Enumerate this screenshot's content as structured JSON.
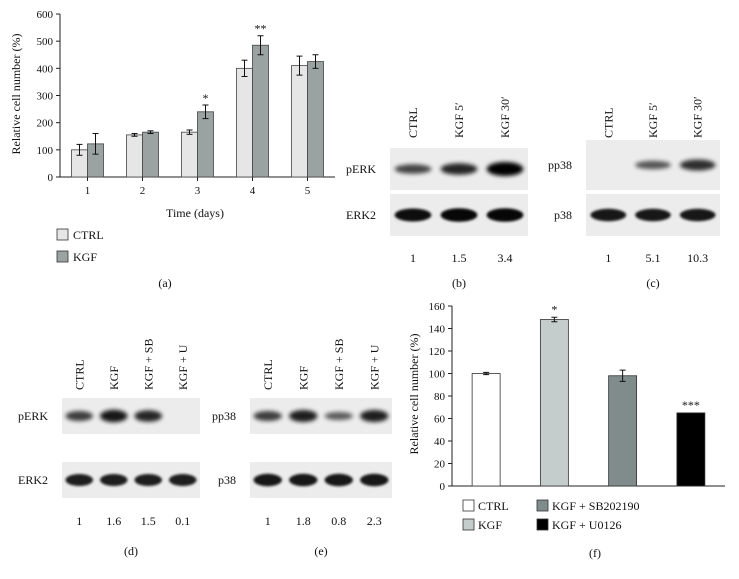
{
  "chart_data": [
    {
      "panel": "(a)",
      "type": "bar",
      "categories": [
        "1",
        "2",
        "3",
        "4",
        "5"
      ],
      "series": [
        {
          "name": "CTRL",
          "values": [
            100,
            155,
            165,
            400,
            410
          ],
          "errors": [
            20,
            5,
            8,
            30,
            35
          ],
          "color": "#e6e6e6"
        },
        {
          "name": "KGF",
          "values": [
            122,
            165,
            240,
            485,
            425
          ],
          "errors": [
            38,
            5,
            25,
            35,
            25
          ],
          "color": "#9aa2a2"
        }
      ],
      "annotations": [
        {
          "category": "3",
          "series": "KGF",
          "text": "*"
        },
        {
          "category": "4",
          "series": "KGF",
          "text": "**"
        }
      ],
      "xlabel": "Time (days)",
      "ylabel": "Relative cell number (%)",
      "ylim": [
        0,
        600
      ],
      "yticks": [
        "0",
        "100",
        "200",
        "300",
        "400",
        "500",
        "600"
      ],
      "legend_position": "bottom-left"
    },
    {
      "panel": "(f)",
      "type": "bar",
      "categories": [
        "CTRL",
        "KGF",
        "KGF + SB202190",
        "KGF + U0126"
      ],
      "values": [
        100,
        148,
        98,
        65
      ],
      "errors": [
        1,
        2,
        5,
        0
      ],
      "colors": [
        "#ffffff",
        "#c5cccc",
        "#808b8b",
        "#000000"
      ],
      "annotations": [
        {
          "category": "KGF",
          "text": "*"
        },
        {
          "category": "KGF + U0126",
          "text": "***"
        }
      ],
      "ylabel": "Relative cell number (%)",
      "ylim": [
        0,
        160
      ],
      "yticks": [
        "0",
        "20",
        "40",
        "60",
        "80",
        "100",
        "120",
        "140",
        "160"
      ],
      "legend_position": "bottom"
    }
  ],
  "blots": [
    {
      "panel": "(b)",
      "lanes": [
        "CTRL",
        "KGF 5′",
        "KGF 30′"
      ],
      "rows": [
        "pERK",
        "ERK2"
      ],
      "quant": [
        "1",
        "1.5",
        "3.4"
      ]
    },
    {
      "panel": "(c)",
      "lanes": [
        "CTRL",
        "KGF 5′",
        "KGF 30′"
      ],
      "rows": [
        "pp38",
        "p38"
      ],
      "quant": [
        "1",
        "5.1",
        "10.3"
      ]
    },
    {
      "panel": "(d)",
      "lanes": [
        "CTRL",
        "KGF",
        "KGF + SB",
        "KGF + U"
      ],
      "rows": [
        "pERK",
        "ERK2"
      ],
      "quant": [
        "1",
        "1.6",
        "1.5",
        "0.1"
      ]
    },
    {
      "panel": "(e)",
      "lanes": [
        "CTRL",
        "KGF",
        "KGF + SB",
        "KGF + U"
      ],
      "rows": [
        "pp38",
        "p38"
      ],
      "quant": [
        "1",
        "1.8",
        "0.8",
        "2.3"
      ]
    }
  ]
}
